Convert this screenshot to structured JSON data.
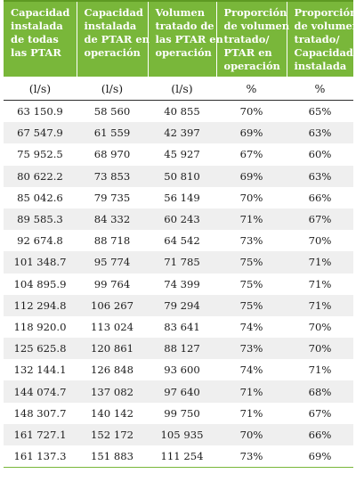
{
  "headers": [
    [
      "Capacidad",
      "instalada",
      "de todas",
      "las PTAR"
    ],
    [
      "Capacidad",
      "instalada",
      "de PTAR en",
      "operación"
    ],
    [
      "Volumen",
      "tratado de",
      "las PTAR en",
      "operación"
    ],
    [
      "Proporción",
      "de volumen",
      "tratado/",
      "PTAR en",
      "operación"
    ],
    [
      "Proporción",
      "de volumen",
      "tratado/",
      "Capacidad",
      "instalada"
    ]
  ],
  "units": [
    "(l/s)",
    "(l/s)",
    "(l/s)",
    "%",
    "%"
  ],
  "rows": [
    [
      "63 150.9",
      "58 560",
      "40 855",
      "70%",
      "65%"
    ],
    [
      "67 547.9",
      "61 559",
      "42 397",
      "69%",
      "63%"
    ],
    [
      "75 952.5",
      "68 970",
      "45 927",
      "67%",
      "60%"
    ],
    [
      "80 622.2",
      "73 853",
      "50 810",
      "69%",
      "63%"
    ],
    [
      "85 042.6",
      "79 735",
      "56 149",
      "70%",
      "66%"
    ],
    [
      "89 585.3",
      "84 332",
      "60 243",
      "71%",
      "67%"
    ],
    [
      "92 674.8",
      "88 718",
      "64 542",
      "73%",
      "70%"
    ],
    [
      "101 348.7",
      "95 774",
      "71 785",
      "75%",
      "71%"
    ],
    [
      "104 895.9",
      "99 764",
      "74 399",
      "75%",
      "71%"
    ],
    [
      "112 294.8",
      "106 267",
      "79 294",
      "75%",
      "71%"
    ],
    [
      "118 920.0",
      "113 024",
      "83 641",
      "74%",
      "70%"
    ],
    [
      "125 625.8",
      "120 861",
      "88 127",
      "73%",
      "70%"
    ],
    [
      "132 144.1",
      "126 848",
      "93 600",
      "74%",
      "71%"
    ],
    [
      "144 074.7",
      "137 082",
      "97 640",
      "71%",
      "68%"
    ],
    [
      "148 307.7",
      "140 142",
      "99 750",
      "71%",
      "67%"
    ],
    [
      "161 727.1",
      "152 172",
      "105 935",
      "70%",
      "66%"
    ],
    [
      "161 137.3",
      "151 883",
      "111 254",
      "73%",
      "69%"
    ]
  ],
  "colors": {
    "header_bg": "#79b73a",
    "alt_row_bg": "#efefef",
    "header_text": "#ffffff"
  }
}
